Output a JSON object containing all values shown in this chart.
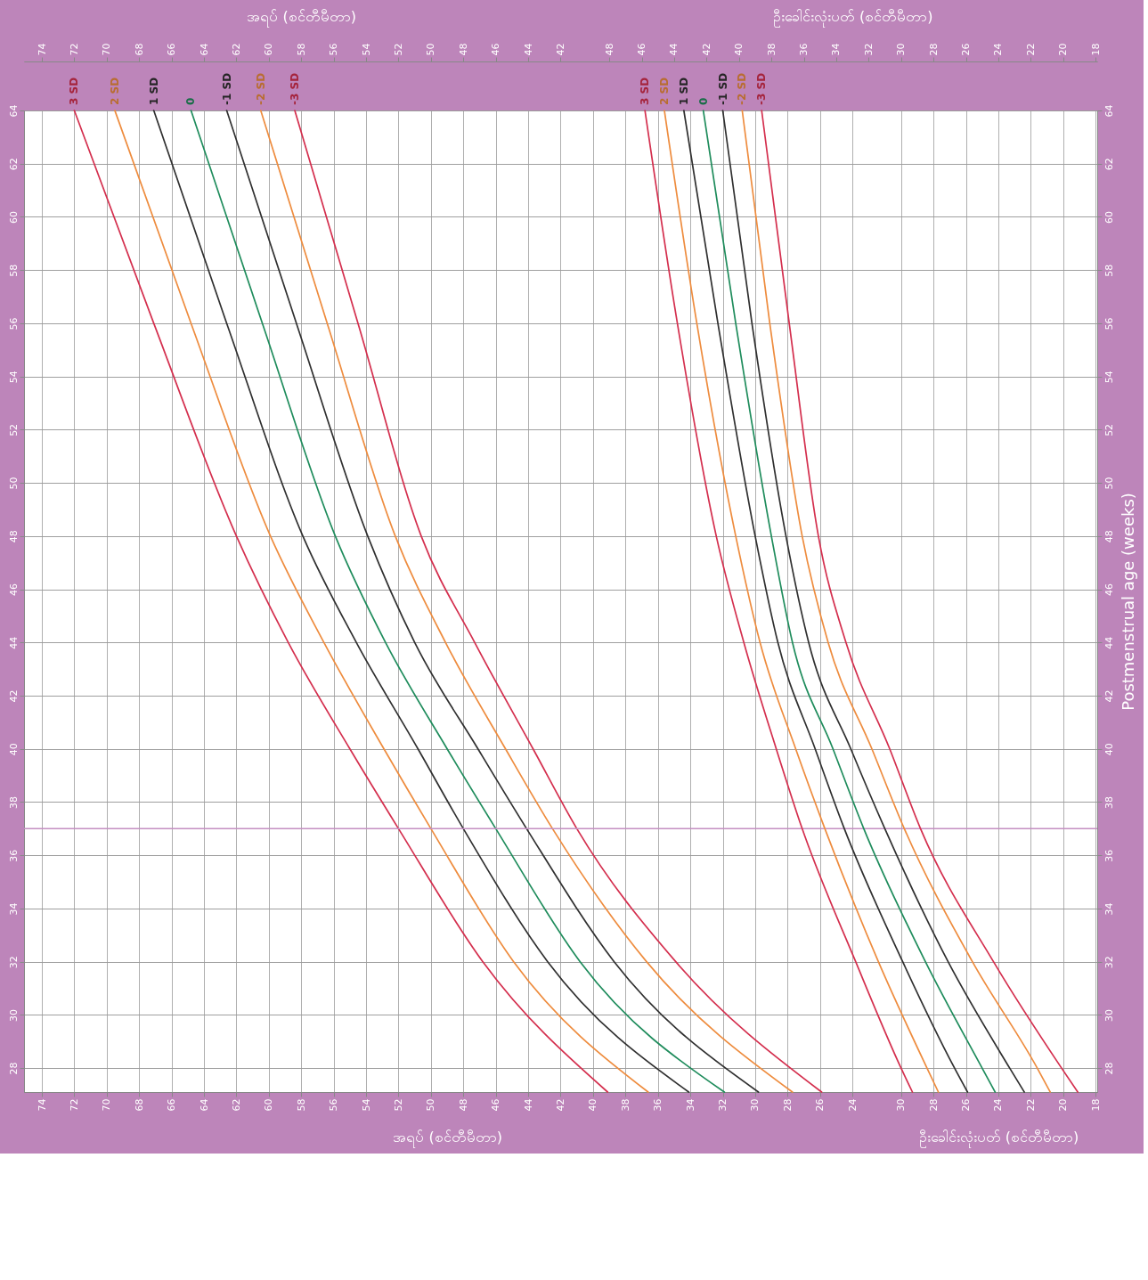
{
  "chart_data": [
    {
      "type": "line",
      "xlabel": "အရပ် (စင်တီမီတာ)",
      "x2label": "အရပ် (စင်တီမီတာ)",
      "ylim": [
        27.1,
        64
      ],
      "yticks": [
        28,
        30,
        32,
        34,
        36,
        38,
        40,
        42,
        44,
        46,
        48,
        50,
        52,
        54,
        56,
        58,
        60,
        62,
        64
      ],
      "xlim": [
        75.1,
        8.9
      ],
      "xticks": [
        74,
        72,
        70,
        68,
        66,
        64,
        62,
        60,
        58,
        56,
        54,
        52,
        50,
        48,
        46,
        44,
        42,
        40,
        38,
        36,
        34,
        32,
        30,
        28,
        26,
        24
      ],
      "x2lim": [
        75.1,
        8.9
      ],
      "x2ticks": [
        74,
        72,
        70,
        68,
        66,
        64,
        62,
        60,
        58,
        56,
        54,
        52,
        50,
        48,
        46,
        44,
        42
      ],
      "grid": true,
      "line_style": "solid",
      "ref_lines": [
        {
          "axis": "y",
          "value": 37,
          "color": "#c48fc2"
        }
      ],
      "series": [
        {
          "name": "3 SD",
          "color": "#d42f4e",
          "values": [
            27.1,
            32,
            37,
            40,
            44,
            48,
            56,
            64
          ],
          "x": [
            39.1,
            46.8,
            52.0,
            55.0,
            58.8,
            62.0,
            67.1,
            72.0
          ]
        },
        {
          "name": "2 SD",
          "color": "#ee8c3e",
          "values": [
            27.1,
            32,
            37,
            40,
            44,
            48,
            56,
            64
          ],
          "x": [
            36.6,
            44.9,
            50.0,
            52.9,
            56.6,
            59.9,
            64.8,
            69.5
          ]
        },
        {
          "name": "1 SD",
          "color": "#303030",
          "values": [
            27.1,
            32,
            37,
            40,
            44,
            48,
            56,
            64
          ],
          "x": [
            34.1,
            42.8,
            48.0,
            50.8,
            54.6,
            57.9,
            62.6,
            67.1
          ]
        },
        {
          "name": "0",
          "color": "#1f8c5c",
          "values": [
            27.1,
            32,
            37,
            40,
            44,
            48,
            56,
            64
          ],
          "x": [
            31.9,
            40.8,
            46.0,
            49.0,
            52.8,
            55.9,
            60.4,
            64.8
          ]
        },
        {
          "name": "-1 SD",
          "color": "#303030",
          "values": [
            27.1,
            32,
            37,
            40,
            44,
            48,
            56,
            64
          ],
          "x": [
            29.8,
            38.7,
            44.1,
            47.1,
            51.0,
            53.9,
            58.3,
            62.6
          ]
        },
        {
          "name": "-2 SD",
          "color": "#ee8c3e",
          "values": [
            27.1,
            32,
            37,
            40,
            44,
            48,
            56,
            64
          ],
          "x": [
            27.7,
            36.7,
            42.5,
            45.4,
            49.1,
            52.2,
            56.4,
            60.5
          ]
        },
        {
          "name": "-3 SD",
          "color": "#d42f4e",
          "values": [
            27.1,
            32,
            37,
            40,
            44,
            48,
            56,
            64
          ],
          "x": [
            25.9,
            34.9,
            41.0,
            43.7,
            47.3,
            50.6,
            54.5,
            58.4
          ]
        }
      ]
    },
    {
      "type": "line",
      "xlabel": "ဦးခေါင်းလုံးပတ် (စင်တီမီတာ)",
      "x2label": "ဦးခေါင်းလုံးပတ် (စင်တီမီတာ)",
      "y2label": "Postmenstrual age (weeks)",
      "y2lim": [
        27.1,
        64
      ],
      "y2ticks": [
        28,
        30,
        32,
        34,
        36,
        38,
        40,
        42,
        44,
        46,
        48,
        50,
        52,
        54,
        56,
        58,
        60,
        62,
        64
      ],
      "xlim": [
        84.1,
        17.9
      ],
      "xticks": [
        30,
        28,
        26,
        24,
        22,
        20,
        18
      ],
      "x2lim": [
        84.1,
        17.9
      ],
      "x2ticks": [
        48,
        46,
        44,
        42,
        40,
        38,
        36,
        34,
        32,
        30,
        28,
        26,
        24,
        22,
        20,
        18
      ],
      "grid": true,
      "line_style": "solid",
      "series": [
        {
          "name": "3 SD",
          "color": "#d42f4e",
          "axis": "y2",
          "values": [
            27.1,
            28,
            32,
            37,
            40,
            44,
            48,
            56,
            64
          ],
          "x": [
            29.3,
            30.0,
            32.8,
            36.1,
            37.7,
            39.7,
            41.4,
            43.8,
            45.8
          ]
        },
        {
          "name": "2 SD",
          "color": "#ee8c3e",
          "axis": "y2",
          "values": [
            27.1,
            28,
            32,
            37,
            40,
            44,
            48,
            56,
            64
          ],
          "x": [
            27.7,
            28.4,
            31.4,
            34.7,
            36.5,
            38.7,
            40.2,
            42.6,
            44.6
          ]
        },
        {
          "name": "1 SD",
          "color": "#303030",
          "axis": "y2",
          "values": [
            27.1,
            28,
            32,
            37,
            40,
            44,
            48,
            56,
            64
          ],
          "x": [
            25.9,
            26.7,
            29.9,
            33.5,
            35.3,
            37.6,
            39.0,
            41.3,
            43.4
          ]
        },
        {
          "name": "0",
          "color": "#1f8c5c",
          "axis": "y2",
          "values": [
            27.1,
            28,
            32,
            37,
            40,
            44,
            48,
            56,
            64
          ],
          "x": [
            24.2,
            25.0,
            28.5,
            32.3,
            34.2,
            36.7,
            38.0,
            40.2,
            42.2
          ]
        },
        {
          "name": "-1 SD",
          "color": "#303030",
          "axis": "y2",
          "values": [
            27.1,
            28,
            32,
            37,
            40,
            44,
            48,
            56,
            64
          ],
          "x": [
            22.4,
            23.3,
            27.1,
            31.0,
            33.1,
            35.7,
            37.1,
            39.2,
            41.0
          ]
        },
        {
          "name": "-2 SD",
          "color": "#ee8c3e",
          "axis": "y2",
          "values": [
            27.1,
            28,
            32,
            37,
            40,
            44,
            48,
            56,
            64
          ],
          "x": [
            20.8,
            21.6,
            25.6,
            29.8,
            31.8,
            34.5,
            36.1,
            38.1,
            39.8
          ]
        },
        {
          "name": "-3 SD",
          "color": "#d42f4e",
          "axis": "y2",
          "values": [
            27.1,
            28,
            32,
            37,
            40,
            44,
            48,
            56,
            64
          ],
          "x": [
            19.1,
            20.1,
            24.3,
            28.8,
            30.7,
            33.4,
            35.1,
            36.9,
            38.6
          ]
        }
      ]
    }
  ]
}
